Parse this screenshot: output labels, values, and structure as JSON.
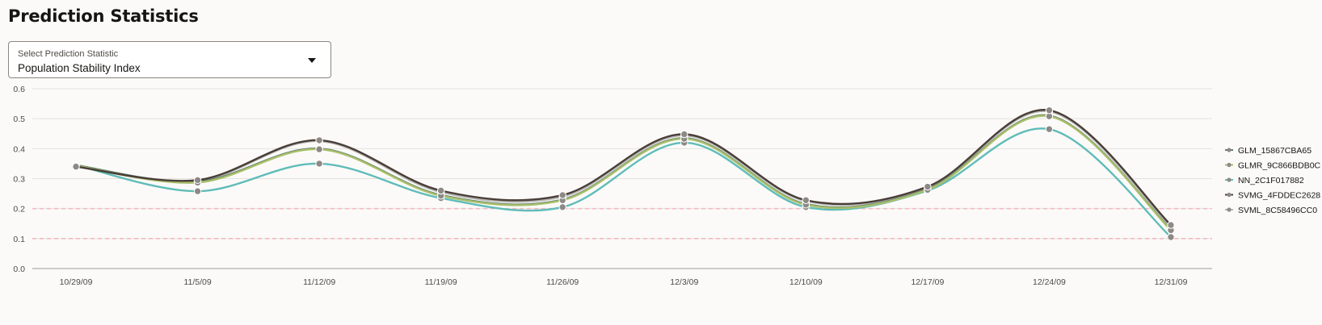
{
  "header": {
    "title": "Prediction Statistics"
  },
  "selector": {
    "label": "Select Prediction Statistic",
    "value": "Population Stability Index"
  },
  "chart_data": {
    "type": "line",
    "title": "",
    "xlabel": "",
    "ylabel": "",
    "ylim": [
      0,
      0.6
    ],
    "yticks": [
      "0.0",
      "0.1",
      "0.2",
      "0.3",
      "0.4",
      "0.5",
      "0.6"
    ],
    "x": [
      "10/29/09",
      "11/5/09",
      "11/12/09",
      "11/19/09",
      "11/26/09",
      "12/3/09",
      "12/10/09",
      "12/17/09",
      "12/24/09",
      "12/31/09"
    ],
    "thresholds": [
      0.1,
      0.2
    ],
    "threshold_color": "#f5b8c4",
    "legend_position": "right",
    "series": [
      {
        "name": "GLM_15867CBA65",
        "color": "#5b7a6a",
        "values": [
          0.345,
          0.29,
          0.4,
          0.245,
          0.23,
          0.435,
          0.215,
          0.265,
          0.51,
          0.13
        ]
      },
      {
        "name": "GLMR_9C866BDB0C",
        "color": "#a9bf6a",
        "values": [
          0.343,
          0.287,
          0.398,
          0.243,
          0.228,
          0.433,
          0.213,
          0.263,
          0.508,
          0.128
        ]
      },
      {
        "name": "NN_2C1F017882",
        "color": "#5fbcb8",
        "values": [
          0.345,
          0.258,
          0.35,
          0.235,
          0.205,
          0.42,
          0.205,
          0.26,
          0.465,
          0.105
        ]
      },
      {
        "name": "SVMG_4FDDEC2628",
        "color": "#4a3e38",
        "values": [
          0.34,
          0.295,
          0.428,
          0.26,
          0.245,
          0.448,
          0.228,
          0.273,
          0.528,
          0.145
        ]
      },
      {
        "name": "SVML_8C58496CC0",
        "color": "#b7b6b2",
        "values": [
          0.342,
          0.292,
          0.425,
          0.255,
          0.24,
          0.444,
          0.225,
          0.27,
          0.524,
          0.14
        ]
      }
    ]
  }
}
